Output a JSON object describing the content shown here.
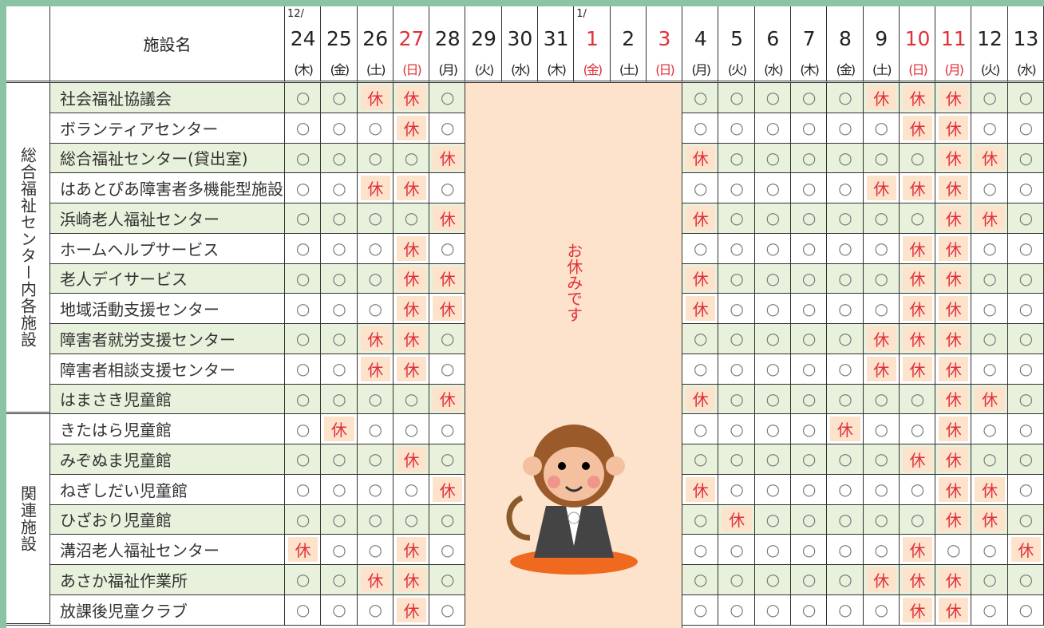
{
  "header": {
    "facility_label": "施設名",
    "closed_text": "お休みです",
    "days": [
      {
        "month": "12/",
        "day": "24",
        "weekday": "(木)"
      },
      {
        "day": "25",
        "weekday": "(金)"
      },
      {
        "day": "26",
        "weekday": "(土)"
      },
      {
        "day": "27",
        "weekday": "(日)",
        "holiday": true
      },
      {
        "day": "28",
        "weekday": "(月)"
      },
      {
        "day": "29",
        "weekday": "(火)",
        "closed": true
      },
      {
        "day": "30",
        "weekday": "(水)",
        "closed": true
      },
      {
        "day": "31",
        "weekday": "(木)",
        "closed": true
      },
      {
        "month": "1/",
        "day": "1",
        "weekday": "(金)",
        "holiday": true,
        "closed": true
      },
      {
        "day": "2",
        "weekday": "(土)",
        "closed": true
      },
      {
        "day": "3",
        "weekday": "(日)",
        "holiday": true,
        "closed": true
      },
      {
        "day": "4",
        "weekday": "(月)"
      },
      {
        "day": "5",
        "weekday": "(火)"
      },
      {
        "day": "6",
        "weekday": "(水)"
      },
      {
        "day": "7",
        "weekday": "(木)"
      },
      {
        "day": "8",
        "weekday": "(金)"
      },
      {
        "day": "9",
        "weekday": "(土)"
      },
      {
        "day": "10",
        "weekday": "(日)",
        "holiday": true
      },
      {
        "day": "11",
        "weekday": "(月)",
        "holiday": true
      },
      {
        "day": "12",
        "weekday": "(火)"
      },
      {
        "day": "13",
        "weekday": "(水)"
      }
    ]
  },
  "groups": [
    {
      "label": "総合福祉センター内各施設",
      "rows": [
        {
          "name": "社会福祉協議会",
          "cells": "○○休休○○○○○○休休休○○"
        },
        {
          "name": "ボランティアセンター",
          "cells": "○○○休○○○○○○○休休○○"
        },
        {
          "name": "総合福祉センター(貸出室)",
          "cells": "○○○○休休○○○○○○休休○"
        },
        {
          "name": "はあとぴあ障害者多機能型施設",
          "cells": "○○休休○○○○○○休休休○○"
        },
        {
          "name": "浜崎老人福祉センター",
          "cells": "○○○○休休○○○○○○休休○"
        },
        {
          "name": "ホームヘルプサービス",
          "cells": "○○○休○○○○○○○休休○○"
        },
        {
          "name": "老人デイサービス",
          "cells": "○○○休休休○○○○○休休○○"
        },
        {
          "name": "地域活動支援センター",
          "cells": "○○○休休休○○○○○休休○○"
        },
        {
          "name": "障害者就労支援センター",
          "cells": "○○休休○○○○○○休休休○○"
        },
        {
          "name": "障害者相談支援センター",
          "cells": "○○休休○○○○○○休休休○○"
        },
        {
          "name": "はまさき児童館",
          "cells": "○○○○休休○○○○○○休休○"
        }
      ]
    },
    {
      "label": "関連施設",
      "rows": [
        {
          "name": "きたはら児童館",
          "cells": "○休○○○○○○○休○○休○○"
        },
        {
          "name": "みぞぬま児童館",
          "cells": "○○○休○○○○○○○休休○○"
        },
        {
          "name": "ねぎしだい児童館",
          "cells": "○○○○休休○○○○○○休休○"
        },
        {
          "name": "ひざおり児童館",
          "cells": "○○○○○○休○○○○○休休○"
        },
        {
          "name": "溝沼老人福祉センター",
          "cells": "休○○休○○○○○○○休○○休"
        },
        {
          "name": "あさか福祉作業所",
          "cells": "○○休休○○○○○○休休休○○"
        },
        {
          "name": "放課後児童クラブ",
          "cells": "○○○休○○○○○○○休休○○"
        }
      ]
    }
  ],
  "style": {
    "open_mark": "○",
    "red": "#e0303a",
    "off_bg": "#fde2cc",
    "stripe_bg": "#e8f1dc"
  }
}
